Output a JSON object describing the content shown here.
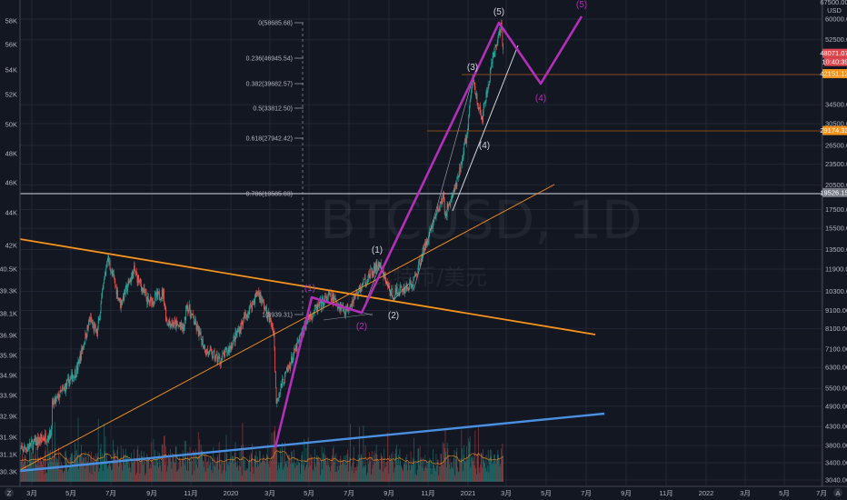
{
  "symbol_watermark": "BTCUSD, 1D",
  "symbol_desc_watermark": "比特币/美元",
  "currency_label": "USD",
  "colors": {
    "background": "#131722",
    "grid": "#232734",
    "up": "#26a69a",
    "down": "#ef5350",
    "wave": "#b32fb9",
    "trend_orange": "#f7931a",
    "trend_blue": "#4a90e2",
    "hline_orange": "#8a4a1a",
    "hline_grey": "#9598a1"
  },
  "price_axis": {
    "scale": "log",
    "top_label": "67500.00",
    "ticks": [
      "60000.00",
      "52500.00",
      "34500.00",
      "30500.00",
      "26500.00",
      "23500.00",
      "20500.00",
      "17500.00",
      "15500.00",
      "13500.00",
      "11900.00",
      "10300.00",
      "9100.00",
      "8100.00",
      "7100.00",
      "6300.00",
      "5500.00",
      "4900.00",
      "4300.00",
      "3800.00",
      "3400.00",
      "3040.00"
    ],
    "last_price": "48071.07",
    "countdown": "10:40:39",
    "level_badges": [
      {
        "value": "42151.12",
        "color": "#f7931a"
      },
      {
        "value": "29174.33",
        "color": "#f7931a"
      },
      {
        "value": "19526.15",
        "color": "#787b86"
      }
    ]
  },
  "left_axis": {
    "ticks": [
      "58K",
      "56K",
      "54K",
      "52K",
      "50K",
      "48K",
      "46K",
      "44K",
      "42K",
      "40.5K",
      "39.3K",
      "38.1K",
      "36.9K",
      "35.9K",
      "34.9K",
      "33.9K",
      "32.9K",
      "31.9K",
      "31.1K",
      "30.3K"
    ]
  },
  "time_axis": {
    "ticks": [
      "3月",
      "5月",
      "7月",
      "9月",
      "11月",
      "2020",
      "3月",
      "5月",
      "7月",
      "9月",
      "11月",
      "2021",
      "3月",
      "5月",
      "7月",
      "9月",
      "11月",
      "2022",
      "3月",
      "5月",
      "7月"
    ]
  },
  "bottom_buttons": {
    "left": "Z",
    "right": "A"
  },
  "fib_levels": [
    {
      "label": "0(58685.68)"
    },
    {
      "label": "0.236(46945.54)"
    },
    {
      "label": "0.382(39682.57)"
    },
    {
      "label": "0.5(33812.50)"
    },
    {
      "label": "0.618(27942.42)"
    },
    {
      "label": "0.786(19585.03)"
    },
    {
      "label": "1(3939.31)"
    }
  ],
  "wave_labels_white": [
    "(1)",
    "(2)",
    "(3)",
    "(4)",
    "(5)"
  ],
  "wave_labels_purple": [
    "(1)",
    "(2)",
    "(4)",
    "(5)"
  ],
  "chart_data": {
    "type": "line",
    "title": "BTCUSD, 1D",
    "ylabel": "USD",
    "yscale": "log",
    "ylim": [
      3040,
      67500
    ],
    "xlim": [
      "2019-02-10",
      "2022-07-31"
    ],
    "grid": true,
    "x": [
      "2019-02-10",
      "2019-03-31",
      "2019-04-02",
      "2019-05-10",
      "2019-05-30",
      "2019-06-10",
      "2019-06-26",
      "2019-07-16",
      "2019-08-06",
      "2019-08-28",
      "2019-09-20",
      "2019-09-25",
      "2019-10-22",
      "2019-10-26",
      "2019-11-25",
      "2019-12-17",
      "2020-01-01",
      "2020-02-13",
      "2020-03-08",
      "2020-03-12",
      "2020-03-13",
      "2020-04-30",
      "2020-06-01",
      "2020-06-27",
      "2020-07-26",
      "2020-08-17",
      "2020-09-05",
      "2020-10-08",
      "2020-10-21",
      "2020-11-05",
      "2020-11-24",
      "2020-11-26",
      "2020-12-16",
      "2020-12-31",
      "2021-01-08",
      "2021-01-22",
      "2021-02-08",
      "2021-02-21",
      "2021-02-24"
    ],
    "values": [
      3650,
      4100,
      4900,
      6200,
      8600,
      7800,
      12900,
      9500,
      11800,
      9600,
      10200,
      8500,
      8100,
      9500,
      7000,
      6600,
      7200,
      10300,
      8000,
      4900,
      5200,
      8700,
      10000,
      9100,
      11000,
      12300,
      10100,
      10800,
      12900,
      15500,
      19100,
      16800,
      21000,
      29000,
      41000,
      31000,
      46000,
      58000,
      48071
    ]
  }
}
